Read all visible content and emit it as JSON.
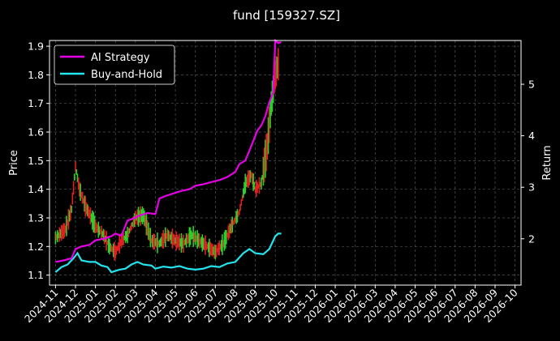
{
  "chart_data": {
    "type": "line",
    "title": "fund [159327.SZ]",
    "ylabel_left": "Price",
    "ylabel_right": "Return",
    "x_ticks": [
      "2024-11",
      "2024-12",
      "2025-01",
      "2025-02",
      "2025-03",
      "2025-04",
      "2025-05",
      "2025-06",
      "2025-07",
      "2025-08",
      "2025-09",
      "2025-10",
      "2025-11",
      "2025-12",
      "2026-01",
      "2026-02",
      "2026-03",
      "2026-04",
      "2026-05",
      "2026-06",
      "2026-07",
      "2026-08",
      "2026-09",
      "2026-10"
    ],
    "y_left_ticks": [
      1.1,
      1.2,
      1.3,
      1.4,
      1.5,
      1.6,
      1.7,
      1.8,
      1.9
    ],
    "y_left_range": [
      1.065,
      1.92
    ],
    "y_right_ticks": [
      2,
      3,
      4,
      5
    ],
    "y_right_range": [
      1.1,
      5.85
    ],
    "x_range_months": [
      -0.3,
      23.3
    ],
    "grid": true,
    "legend_position": "top-left",
    "colors": {
      "ai_strategy": "#e600e6",
      "buy_and_hold": "#22e5f0",
      "up": "#2bd12b",
      "down": "#e02020"
    },
    "series": [
      {
        "name": "AI Strategy",
        "axis": "right",
        "points": [
          [
            0,
            1.55
          ],
          [
            0.4,
            1.58
          ],
          [
            0.8,
            1.62
          ],
          [
            1.0,
            1.8
          ],
          [
            1.3,
            1.85
          ],
          [
            1.7,
            1.88
          ],
          [
            2.0,
            1.97
          ],
          [
            2.4,
            2.0
          ],
          [
            2.8,
            2.05
          ],
          [
            3.0,
            2.1
          ],
          [
            3.3,
            2.06
          ],
          [
            3.6,
            2.35
          ],
          [
            3.8,
            2.38
          ],
          [
            4.2,
            2.45
          ],
          [
            4.6,
            2.5
          ],
          [
            5.0,
            2.48
          ],
          [
            5.2,
            2.78
          ],
          [
            5.5,
            2.83
          ],
          [
            5.9,
            2.88
          ],
          [
            6.3,
            2.93
          ],
          [
            6.7,
            2.96
          ],
          [
            7.0,
            3.03
          ],
          [
            7.4,
            3.06
          ],
          [
            7.8,
            3.1
          ],
          [
            8.2,
            3.14
          ],
          [
            8.6,
            3.2
          ],
          [
            9.0,
            3.3
          ],
          [
            9.2,
            3.45
          ],
          [
            9.5,
            3.52
          ],
          [
            9.8,
            3.8
          ],
          [
            10.1,
            4.1
          ],
          [
            10.3,
            4.2
          ],
          [
            10.5,
            4.38
          ],
          [
            10.7,
            4.65
          ],
          [
            10.9,
            4.85
          ],
          [
            11.0,
            5.85
          ],
          [
            11.15,
            5.8
          ],
          [
            11.3,
            5.82
          ]
        ]
      },
      {
        "name": "Buy-and-Hold",
        "axis": "right",
        "points": [
          [
            0,
            1.35
          ],
          [
            0.3,
            1.45
          ],
          [
            0.6,
            1.5
          ],
          [
            0.9,
            1.62
          ],
          [
            1.1,
            1.72
          ],
          [
            1.3,
            1.58
          ],
          [
            1.7,
            1.55
          ],
          [
            2.0,
            1.55
          ],
          [
            2.3,
            1.48
          ],
          [
            2.6,
            1.45
          ],
          [
            2.8,
            1.35
          ],
          [
            3.2,
            1.4
          ],
          [
            3.5,
            1.42
          ],
          [
            3.8,
            1.5
          ],
          [
            4.1,
            1.55
          ],
          [
            4.4,
            1.5
          ],
          [
            4.8,
            1.48
          ],
          [
            5.0,
            1.42
          ],
          [
            5.4,
            1.46
          ],
          [
            5.8,
            1.44
          ],
          [
            6.2,
            1.47
          ],
          [
            6.6,
            1.42
          ],
          [
            7.0,
            1.4
          ],
          [
            7.4,
            1.42
          ],
          [
            7.8,
            1.47
          ],
          [
            8.2,
            1.45
          ],
          [
            8.6,
            1.52
          ],
          [
            9.0,
            1.55
          ],
          [
            9.4,
            1.72
          ],
          [
            9.7,
            1.8
          ],
          [
            10.0,
            1.72
          ],
          [
            10.4,
            1.7
          ],
          [
            10.7,
            1.8
          ],
          [
            11.0,
            2.05
          ],
          [
            11.15,
            2.1
          ],
          [
            11.3,
            2.1
          ]
        ]
      },
      {
        "name": "Price",
        "axis": "left",
        "style": "bars",
        "points": [
          [
            0,
            1.23
          ],
          [
            0.5,
            1.26
          ],
          [
            0.8,
            1.33
          ],
          [
            1.0,
            1.48
          ],
          [
            1.2,
            1.4
          ],
          [
            1.5,
            1.34
          ],
          [
            1.8,
            1.3
          ],
          [
            2.0,
            1.27
          ],
          [
            2.4,
            1.24
          ],
          [
            2.7,
            1.2
          ],
          [
            3.0,
            1.18
          ],
          [
            3.3,
            1.22
          ],
          [
            3.6,
            1.24
          ],
          [
            4.0,
            1.3
          ],
          [
            4.4,
            1.31
          ],
          [
            4.8,
            1.22
          ],
          [
            5.2,
            1.21
          ],
          [
            5.6,
            1.24
          ],
          [
            6.0,
            1.22
          ],
          [
            6.4,
            1.21
          ],
          [
            6.8,
            1.24
          ],
          [
            7.2,
            1.22
          ],
          [
            7.6,
            1.2
          ],
          [
            8.0,
            1.18
          ],
          [
            8.4,
            1.21
          ],
          [
            8.8,
            1.27
          ],
          [
            9.2,
            1.32
          ],
          [
            9.5,
            1.42
          ],
          [
            9.8,
            1.45
          ],
          [
            10.0,
            1.4
          ],
          [
            10.3,
            1.42
          ],
          [
            10.6,
            1.55
          ],
          [
            10.8,
            1.7
          ],
          [
            11.0,
            1.8
          ],
          [
            11.2,
            1.85
          ]
        ]
      }
    ]
  }
}
